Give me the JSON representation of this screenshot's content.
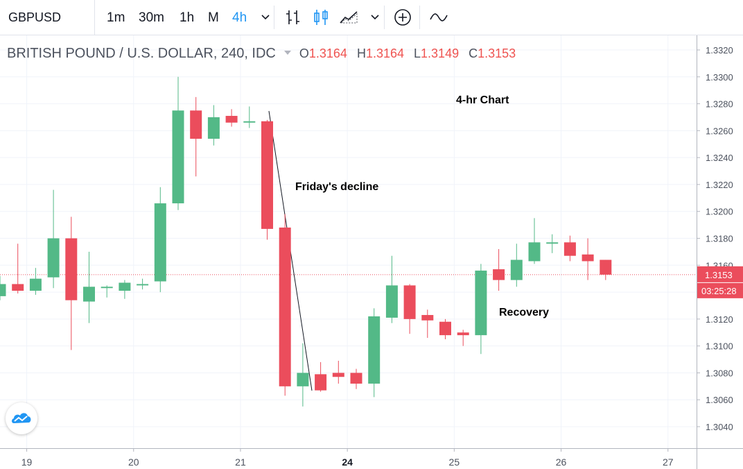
{
  "toolbar": {
    "symbol": "GBPUSD",
    "timeframes": [
      "1m",
      "30m",
      "1h",
      "M",
      "4h"
    ],
    "active_timeframe": "4h",
    "accent": "#2196f3"
  },
  "legend": {
    "title": "BRITISH POUND / U.S. DOLLAR, 240, IDC",
    "o_label": "O",
    "o": "1.3164",
    "h_label": "H",
    "h": "1.3164",
    "l_label": "L",
    "l": "1.3149",
    "c_label": "C",
    "c": "1.3153"
  },
  "annotations": {
    "chart_label": "4-hr Chart",
    "decline": "Friday's decline",
    "recovery": "Recovery"
  },
  "price_tag": {
    "price": "1.3153",
    "countdown": "03:25:28"
  },
  "chart_data": {
    "type": "candlestick",
    "up_color": "#53b987",
    "down_color": "#eb4d5c",
    "ylim": [
      1.303,
      1.333
    ],
    "y_ticks": [
      "1.3040",
      "1.3060",
      "1.3080",
      "1.3100",
      "1.3120",
      "1.3140",
      "1.3160",
      "1.3180",
      "1.3200",
      "1.3220",
      "1.3240",
      "1.3260",
      "1.3280",
      "1.3300",
      "1.3320"
    ],
    "x_ticks": [
      {
        "label": "19",
        "index": 1.5,
        "bold": false
      },
      {
        "label": "20",
        "index": 7.5,
        "bold": false
      },
      {
        "label": "21",
        "index": 13.5,
        "bold": false
      },
      {
        "label": "24",
        "index": 19.5,
        "bold": true
      },
      {
        "label": "25",
        "index": 25.5,
        "bold": false
      },
      {
        "label": "26",
        "index": 31.5,
        "bold": false
      },
      {
        "label": "27",
        "index": 37.5,
        "bold": false
      }
    ],
    "last_price": 1.3153,
    "candles": [
      {
        "o": 1.3137,
        "h": 1.3152,
        "l": 1.3134,
        "c": 1.3146
      },
      {
        "o": 1.3146,
        "h": 1.3176,
        "l": 1.3139,
        "c": 1.3141
      },
      {
        "o": 1.3141,
        "h": 1.3158,
        "l": 1.3138,
        "c": 1.315
      },
      {
        "o": 1.3151,
        "h": 1.3216,
        "l": 1.3143,
        "c": 1.318
      },
      {
        "o": 1.318,
        "h": 1.3196,
        "l": 1.3097,
        "c": 1.3134
      },
      {
        "o": 1.3133,
        "h": 1.317,
        "l": 1.3117,
        "c": 1.3144
      },
      {
        "o": 1.3143,
        "h": 1.3145,
        "l": 1.3136,
        "c": 1.3144
      },
      {
        "o": 1.3141,
        "h": 1.3149,
        "l": 1.3135,
        "c": 1.3147
      },
      {
        "o": 1.3145,
        "h": 1.315,
        "l": 1.3142,
        "c": 1.3146
      },
      {
        "o": 1.3148,
        "h": 1.3218,
        "l": 1.314,
        "c": 1.3206
      },
      {
        "o": 1.3206,
        "h": 1.33,
        "l": 1.3201,
        "c": 1.3275
      },
      {
        "o": 1.3275,
        "h": 1.3285,
        "l": 1.3226,
        "c": 1.3254
      },
      {
        "o": 1.3254,
        "h": 1.3279,
        "l": 1.3249,
        "c": 1.327
      },
      {
        "o": 1.3271,
        "h": 1.3276,
        "l": 1.3263,
        "c": 1.3266
      },
      {
        "o": 1.3266,
        "h": 1.3278,
        "l": 1.3262,
        "c": 1.3267
      },
      {
        "o": 1.3267,
        "h": 1.3268,
        "l": 1.3179,
        "c": 1.3187
      },
      {
        "o": 1.3188,
        "h": 1.3198,
        "l": 1.3063,
        "c": 1.307
      },
      {
        "o": 1.307,
        "h": 1.3102,
        "l": 1.3055,
        "c": 1.308
      },
      {
        "o": 1.3079,
        "h": 1.3088,
        "l": 1.3066,
        "c": 1.3067
      },
      {
        "o": 1.308,
        "h": 1.3089,
        "l": 1.3072,
        "c": 1.3077
      },
      {
        "o": 1.308,
        "h": 1.3083,
        "l": 1.3068,
        "c": 1.3072
      },
      {
        "o": 1.3072,
        "h": 1.3128,
        "l": 1.3062,
        "c": 1.3122
      },
      {
        "o": 1.3121,
        "h": 1.3167,
        "l": 1.3117,
        "c": 1.3145
      },
      {
        "o": 1.3145,
        "h": 1.3146,
        "l": 1.3109,
        "c": 1.312
      },
      {
        "o": 1.3123,
        "h": 1.3127,
        "l": 1.3106,
        "c": 1.3119
      },
      {
        "o": 1.3118,
        "h": 1.312,
        "l": 1.3105,
        "c": 1.3108
      },
      {
        "o": 1.311,
        "h": 1.3112,
        "l": 1.31,
        "c": 1.3108
      },
      {
        "o": 1.3108,
        "h": 1.3161,
        "l": 1.3094,
        "c": 1.3156
      },
      {
        "o": 1.3157,
        "h": 1.3172,
        "l": 1.3141,
        "c": 1.3149
      },
      {
        "o": 1.3149,
        "h": 1.3176,
        "l": 1.3144,
        "c": 1.3164
      },
      {
        "o": 1.3163,
        "h": 1.3195,
        "l": 1.3161,
        "c": 1.3177
      },
      {
        "o": 1.3176,
        "h": 1.3183,
        "l": 1.3169,
        "c": 1.3177
      },
      {
        "o": 1.3177,
        "h": 1.3182,
        "l": 1.3163,
        "c": 1.3167
      },
      {
        "o": 1.3168,
        "h": 1.318,
        "l": 1.3149,
        "c": 1.3163
      },
      {
        "o": 1.3164,
        "h": 1.3164,
        "l": 1.3149,
        "c": 1.3153
      }
    ]
  }
}
